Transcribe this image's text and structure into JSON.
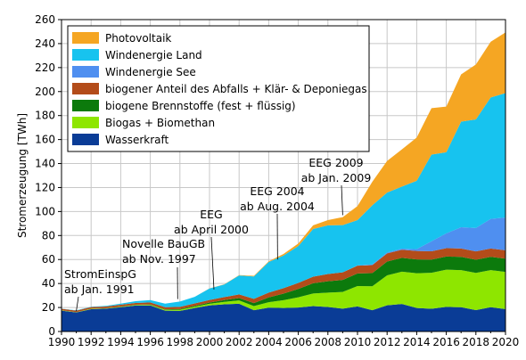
{
  "chart_data": {
    "type": "area",
    "stacked": true,
    "ylabel": "Stromerzeugung [TWh]",
    "xlabel": "",
    "xlim": [
      1990,
      2020
    ],
    "ylim": [
      0,
      260
    ],
    "x_ticks": [
      "1990",
      "1992",
      "1994",
      "1996",
      "1998",
      "2000",
      "2002",
      "2004",
      "2006",
      "2008",
      "2010",
      "2012",
      "2014",
      "2016",
      "2018",
      "2020"
    ],
    "y_ticks": [
      "0",
      "20",
      "40",
      "60",
      "80",
      "100",
      "120",
      "140",
      "160",
      "180",
      "200",
      "220",
      "240",
      "260"
    ],
    "grid": true,
    "legend_position": "top-left",
    "x": [
      1990,
      1991,
      1992,
      1993,
      1994,
      1995,
      1996,
      1997,
      1998,
      1999,
      2000,
      2001,
      2002,
      2003,
      2004,
      2005,
      2006,
      2007,
      2008,
      2009,
      2010,
      2011,
      2012,
      2013,
      2014,
      2015,
      2016,
      2017,
      2018,
      2019,
      2020
    ],
    "series": [
      {
        "name": "Wasserkraft",
        "color": "#0a3c96",
        "values": [
          17.4,
          15.9,
          18.6,
          19.0,
          20.2,
          21.6,
          21.7,
          17.4,
          17.2,
          19.6,
          21.7,
          22.7,
          23.1,
          17.7,
          19.9,
          19.6,
          20.0,
          21.2,
          20.4,
          19.0,
          20.9,
          17.7,
          21.8,
          22.9,
          19.6,
          18.9,
          20.5,
          20.2,
          17.8,
          20.2,
          18.7
        ]
      },
      {
        "name": "Biogas + Biomethan",
        "color": "#8ee600",
        "values": [
          0.2,
          0.2,
          0.3,
          0.3,
          0.4,
          0.5,
          0.6,
          0.7,
          0.9,
          1.0,
          1.4,
          2.0,
          2.8,
          3.5,
          4.5,
          6.5,
          8.5,
          10.5,
          12.0,
          14.0,
          17.0,
          20.0,
          25.0,
          27.0,
          29.0,
          30.0,
          31.0,
          31.0,
          31.0,
          31.0,
          31.0
        ]
      },
      {
        "name": "biogene Brennstoffe (fest + flüssig)",
        "color": "#0c7a0c",
        "values": [
          0.1,
          0.1,
          0.1,
          0.1,
          0.2,
          0.2,
          0.3,
          0.4,
          0.6,
          0.8,
          1.0,
          1.5,
          2.0,
          2.5,
          4.0,
          5.5,
          7.0,
          8.5,
          9.5,
          10.0,
          10.5,
          11.0,
          11.5,
          11.5,
          11.5,
          11.0,
          11.0,
          11.0,
          11.0,
          11.0,
          11.0
        ]
      },
      {
        "name": "biogener Anteil des Abfalls + Klär- & Deponiegas",
        "color": "#b34c1a",
        "values": [
          1.2,
          1.2,
          1.3,
          1.4,
          1.5,
          1.5,
          1.6,
          1.7,
          1.8,
          2.0,
          2.2,
          2.5,
          3.0,
          3.5,
          4.0,
          4.5,
          5.0,
          5.5,
          6.0,
          6.3,
          6.5,
          6.6,
          6.8,
          6.8,
          7.0,
          7.0,
          7.0,
          7.0,
          7.0,
          7.0,
          7.0
        ]
      },
      {
        "name": "Windenergie See",
        "color": "#4f8ff0",
        "values": [
          0,
          0,
          0,
          0,
          0,
          0,
          0,
          0,
          0,
          0,
          0,
          0,
          0,
          0,
          0,
          0,
          0,
          0,
          0,
          0,
          0.2,
          0.6,
          0.7,
          0.9,
          1.5,
          8.3,
          12.3,
          17.7,
          19.5,
          24.7,
          27.3
        ]
      },
      {
        "name": "Windenergie Land",
        "color": "#17c3ef",
        "values": [
          0.1,
          0.2,
          0.3,
          0.6,
          0.9,
          1.5,
          2.0,
          3.0,
          4.5,
          5.5,
          9.5,
          10.5,
          15.8,
          18.7,
          25.5,
          27.2,
          30.7,
          39.7,
          40.6,
          39.4,
          37.8,
          49.3,
          50.0,
          51.7,
          57.0,
          72.3,
          67.6,
          88.0,
          90.5,
          101.2,
          103.7
        ]
      },
      {
        "name": "Photovoltaik",
        "color": "#f5a623",
        "values": [
          0,
          0,
          0,
          0,
          0,
          0,
          0,
          0,
          0,
          0,
          0.1,
          0.2,
          0.3,
          0.5,
          0.6,
          1.3,
          2.2,
          3.1,
          4.4,
          6.6,
          11.7,
          19.6,
          26.4,
          31.0,
          36.1,
          38.7,
          38.1,
          39.4,
          45.8,
          46.4,
          50.6
        ]
      }
    ],
    "legend_order": [
      "Photovoltaik",
      "Windenergie Land",
      "Windenergie See",
      "biogener Anteil des Abfalls + Klär- & Deponiegas",
      "biogene Brennstoffe (fest + flüssig)",
      "Biogas + Biomethan",
      "Wasserkraft"
    ],
    "annotations": [
      {
        "line1": "StromEinspG",
        "line2": "ab Jan. 1991",
        "x": 1991,
        "y": 17
      },
      {
        "line1": "Novelle BauGB",
        "line2": "ab Nov. 1997",
        "x": 1997.85,
        "y": 27
      },
      {
        "line1": "EEG",
        "line2": "ab April 2000",
        "x": 2000.3,
        "y": 35
      },
      {
        "line1": "EEG 2004",
        "line2": "ab Aug. 2004",
        "x": 2004.6,
        "y": 60
      },
      {
        "line1": "EEG 2009",
        "line2": "ab Jan. 2009",
        "x": 2009,
        "y": 97
      }
    ]
  }
}
